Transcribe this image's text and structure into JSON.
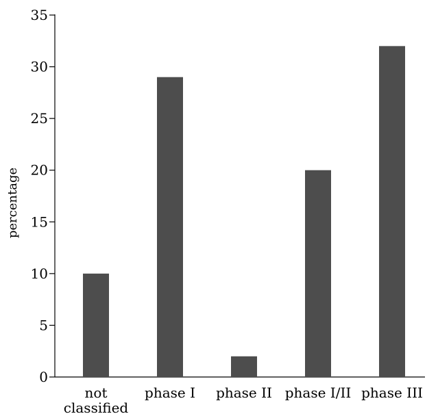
{
  "chart_data": {
    "type": "bar",
    "title": "",
    "xlabel": "",
    "ylabel": "percentage",
    "categories": [
      "not classified",
      "phase I",
      "phase II",
      "phase I/II",
      "phase III"
    ],
    "category_lines": [
      [
        "not",
        "classified"
      ],
      [
        "phase I"
      ],
      [
        "phase II"
      ],
      [
        "phase I/II"
      ],
      [
        "phase III"
      ]
    ],
    "values": [
      10,
      29,
      2,
      20,
      32
    ],
    "ylim": [
      0,
      35
    ],
    "yticks": [
      0,
      5,
      10,
      15,
      20,
      25,
      30,
      35
    ],
    "grid": false,
    "legend": "none",
    "bar_color": "#4d4d4d"
  }
}
